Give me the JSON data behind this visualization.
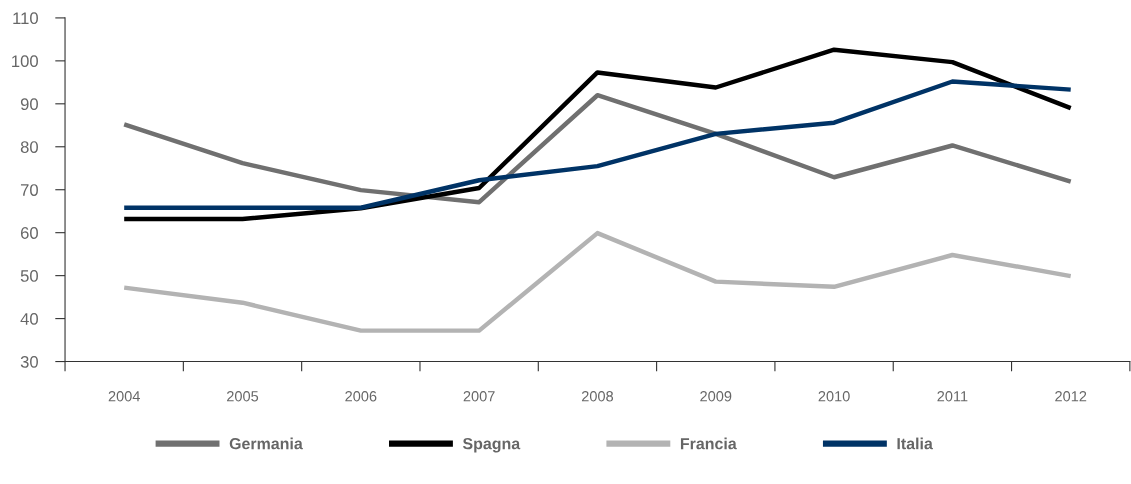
{
  "chart_data": {
    "type": "line",
    "categories": [
      "2004",
      "2005",
      "2006",
      "2007",
      "2008",
      "2009",
      "2010",
      "2011",
      "2012"
    ],
    "series": [
      {
        "name": "Germania",
        "color": "#707070",
        "values": [
          85.2,
          76.2,
          69.9,
          67.1,
          92.0,
          83.0,
          72.9,
          80.3,
          71.9
        ]
      },
      {
        "name": "Spagna",
        "color": "#000000",
        "values": [
          63.2,
          63.2,
          65.7,
          70.4,
          97.3,
          93.8,
          102.6,
          99.7,
          89.0
        ]
      },
      {
        "name": "Francia",
        "color": "#b3b3b3",
        "values": [
          47.2,
          43.7,
          37.2,
          37.2,
          59.9,
          48.6,
          47.4,
          54.8,
          49.9
        ]
      },
      {
        "name": "Italia",
        "color": "#003366",
        "values": [
          65.8,
          65.8,
          65.8,
          72.2,
          75.5,
          83.0,
          85.6,
          95.2,
          93.3
        ]
      }
    ],
    "ylim": [
      30,
      110
    ],
    "yticks": [
      30,
      40,
      50,
      60,
      70,
      80,
      90,
      100,
      110
    ],
    "grid": false,
    "legend": "bottom",
    "marker": "none",
    "line_style": "solid"
  }
}
